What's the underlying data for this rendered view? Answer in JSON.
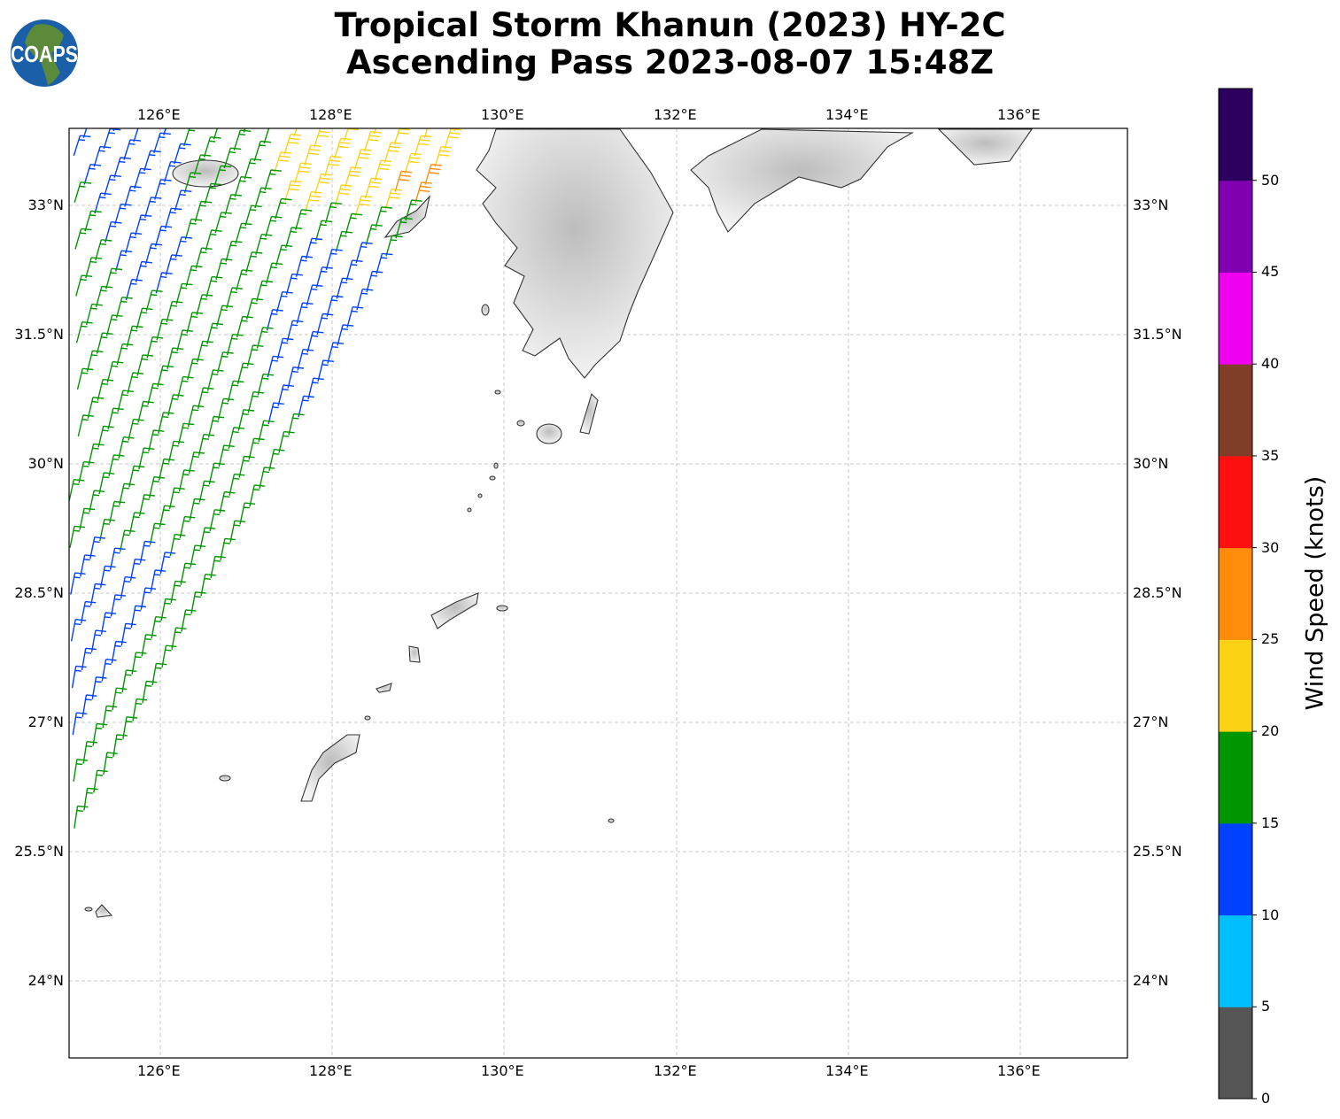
{
  "title_line1": "Tropical Storm Khanun (2023) HY-2C",
  "title_line2": "Ascending Pass 2023-08-07 15:48Z",
  "logo_text": "COAPS",
  "lon_ticks": [
    "126°E",
    "128°E",
    "130°E",
    "132°E",
    "134°E",
    "136°E"
  ],
  "lat_ticks": [
    "33°N",
    "31.5°N",
    "30°N",
    "28.5°N",
    "27°N",
    "25.5°N",
    "24°N"
  ],
  "colorbar": {
    "label": "Wind Speed (knots)",
    "tick_labels": [
      "0",
      "5",
      "10",
      "15",
      "20",
      "25",
      "30",
      "35",
      "40",
      "45",
      "50"
    ],
    "bins": [
      {
        "range": [
          0,
          5
        ],
        "color": "#555555"
      },
      {
        "range": [
          5,
          10
        ],
        "color": "#00bfff"
      },
      {
        "range": [
          10,
          15
        ],
        "color": "#0040ff"
      },
      {
        "range": [
          15,
          20
        ],
        "color": "#009600"
      },
      {
        "range": [
          20,
          25
        ],
        "color": "#fcd214"
      },
      {
        "range": [
          25,
          30
        ],
        "color": "#ff8c0a"
      },
      {
        "range": [
          30,
          35
        ],
        "color": "#ff1010"
      },
      {
        "range": [
          35,
          40
        ],
        "color": "#803e28"
      },
      {
        "range": [
          40,
          45
        ],
        "color": "#f000f0"
      },
      {
        "range": [
          45,
          50
        ],
        "color": "#8000b0"
      },
      {
        "range": [
          50,
          55
        ],
        "color": "#2d0060"
      }
    ]
  }
}
